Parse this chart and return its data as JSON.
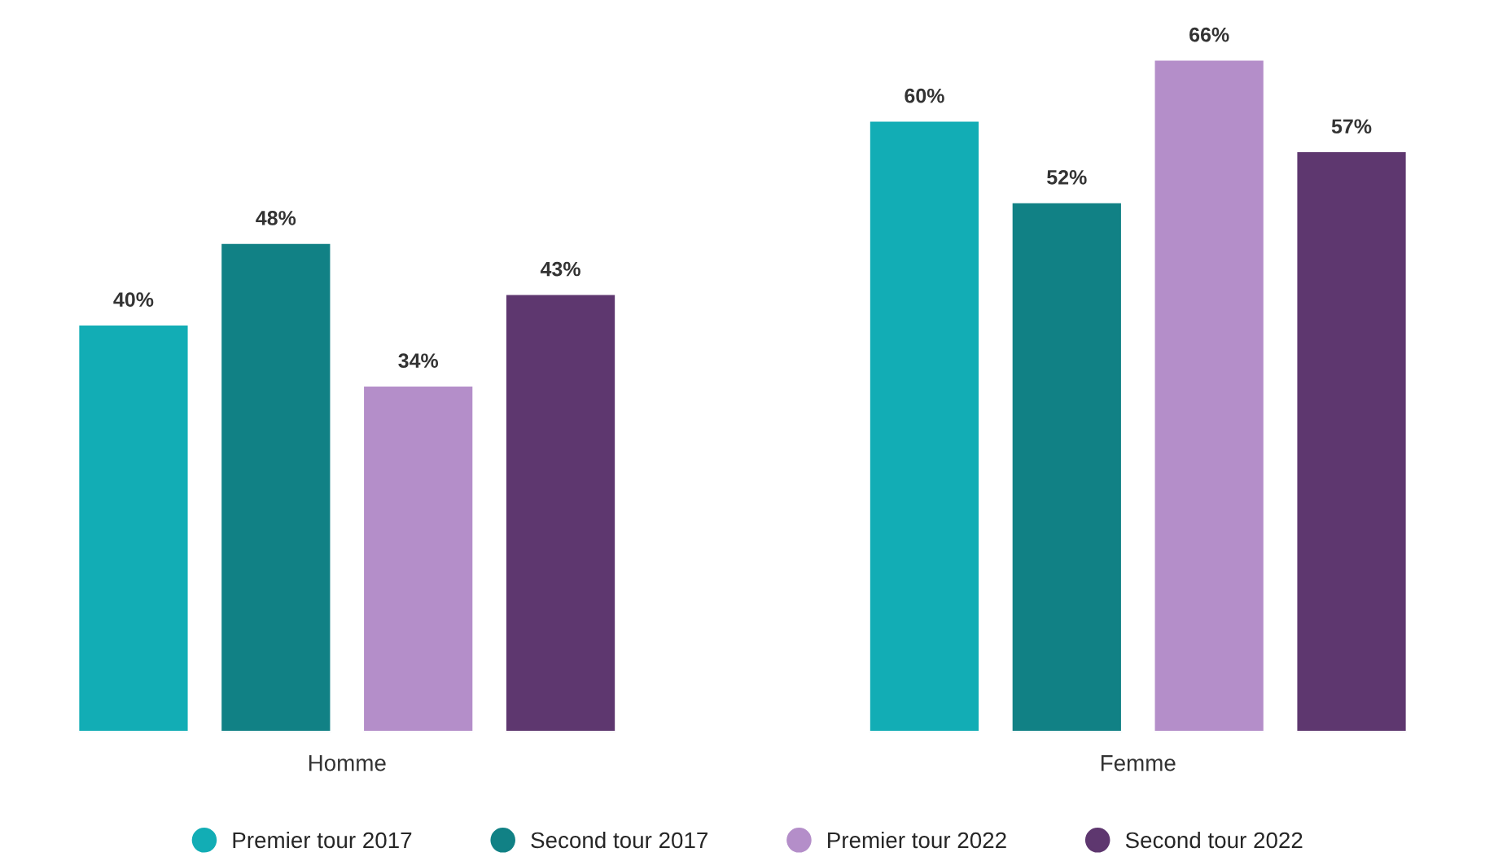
{
  "chart_data": {
    "type": "bar",
    "categories": [
      "Homme",
      "Femme"
    ],
    "series": [
      {
        "name": "Premier tour 2017",
        "color": "#12adb5",
        "values": [
          40,
          60
        ],
        "value_labels": [
          "40%",
          "60%"
        ]
      },
      {
        "name": "Second tour 2017",
        "color": "#118185",
        "values": [
          48,
          52
        ],
        "value_labels": [
          "48%",
          "52%"
        ]
      },
      {
        "name": "Premier tour 2022",
        "color": "#b48ec9",
        "values": [
          34,
          66
        ],
        "value_labels": [
          "34%",
          "66%"
        ]
      },
      {
        "name": "Second tour 2022",
        "color": "#5e376f",
        "values": [
          43,
          57
        ],
        "value_labels": [
          "43%",
          "57%"
        ]
      }
    ],
    "legend": "bottom"
  }
}
